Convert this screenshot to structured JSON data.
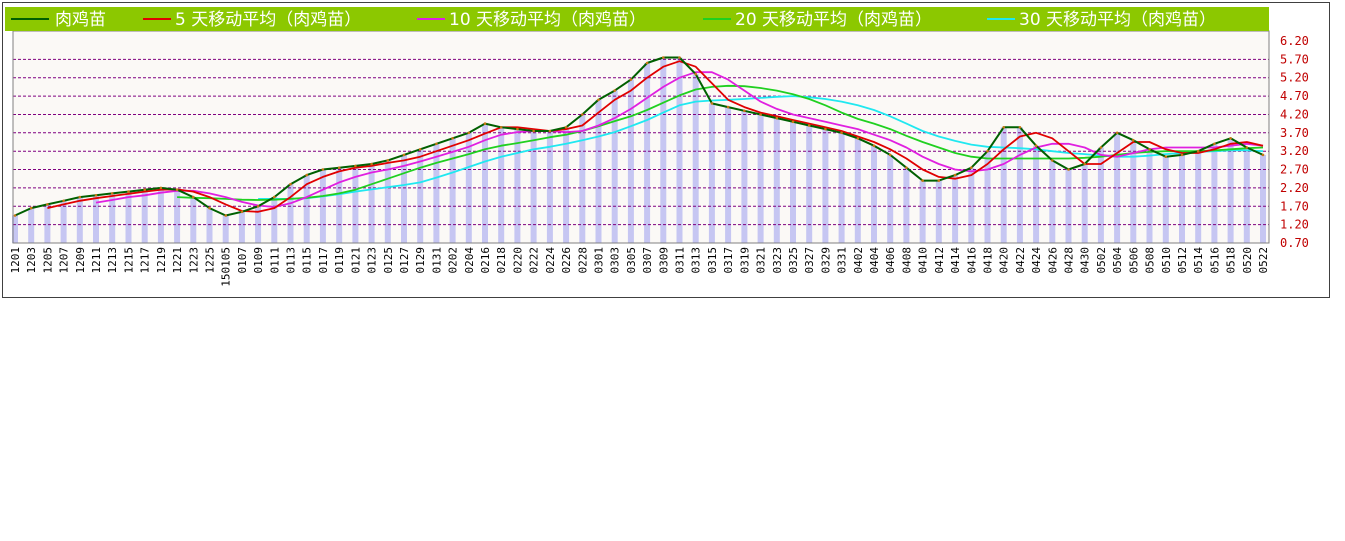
{
  "chart_data": {
    "type": "line",
    "legend_position": "top",
    "grid": true,
    "ylim": [
      0.7,
      6.2
    ],
    "y_ticks": [
      "6.20",
      "5.70",
      "5.20",
      "4.70",
      "4.20",
      "3.70",
      "3.20",
      "2.70",
      "2.20",
      "1.70",
      "1.20",
      "0.70"
    ],
    "x_tick_labels": [
      "1201",
      "1203",
      "1205",
      "1207",
      "1209",
      "1211",
      "1213",
      "1215",
      "1217",
      "1219",
      "1221",
      "1223",
      "1225",
      "150105",
      "0107",
      "0109",
      "0111",
      "0113",
      "0115",
      "0117",
      "0119",
      "0121",
      "0123",
      "0125",
      "0127",
      "0129",
      "0131",
      "0202",
      "0204",
      "0216",
      "0218",
      "0220",
      "0222",
      "0224",
      "0226",
      "0228",
      "0301",
      "0303",
      "0305",
      "0307",
      "0309",
      "0311",
      "0313",
      "0315",
      "0317",
      "0319",
      "0321",
      "0323",
      "0325",
      "0327",
      "0329",
      "0331",
      "0402",
      "0404",
      "0406",
      "0408",
      "0410",
      "0412",
      "0414",
      "0416",
      "0418",
      "0420",
      "0422",
      "0424",
      "0426",
      "0428",
      "0430",
      "0502",
      "0504",
      "0506",
      "0508",
      "0510",
      "0512",
      "0514",
      "0516",
      "0518",
      "0520",
      "0522"
    ],
    "colors": {
      "background_band": "#8cc800",
      "price": "#006000",
      "price_marker": "#c87814",
      "ma5": "#e00000",
      "ma10": "#e020e0",
      "ma20": "#20d020",
      "ma30": "#20e8f0",
      "grid": "#800080",
      "bars": "#b4b4f0"
    },
    "series": [
      {
        "name": "肉鸡苗",
        "key": "price",
        "values": [
          1.45,
          1.65,
          1.75,
          1.85,
          1.95,
          2.0,
          2.05,
          2.1,
          2.15,
          2.2,
          2.15,
          1.95,
          1.65,
          1.45,
          1.55,
          1.7,
          1.95,
          2.3,
          2.55,
          2.7,
          2.75,
          2.8,
          2.85,
          2.95,
          3.1,
          3.25,
          3.4,
          3.55,
          3.7,
          3.95,
          3.85,
          3.8,
          3.75,
          3.75,
          3.85,
          4.2,
          4.6,
          4.85,
          5.15,
          5.6,
          5.75,
          5.75,
          5.3,
          4.5,
          4.4,
          4.3,
          4.2,
          4.1,
          4.0,
          3.9,
          3.8,
          3.7,
          3.55,
          3.35,
          3.1,
          2.75,
          2.4,
          2.4,
          2.55,
          2.75,
          3.2,
          3.85,
          3.85,
          3.35,
          2.95,
          2.7,
          2.85,
          3.3,
          3.7,
          3.5,
          3.25,
          3.05,
          3.1,
          3.2,
          3.4,
          3.55,
          3.3,
          3.1
        ]
      },
      {
        "name": "5 天移动平均（肉鸡苗）",
        "key": "ma5",
        "values": [
          null,
          null,
          1.65,
          1.75,
          1.85,
          1.92,
          1.98,
          2.04,
          2.1,
          2.15,
          2.16,
          2.1,
          1.95,
          1.75,
          1.57,
          1.55,
          1.65,
          1.95,
          2.3,
          2.5,
          2.65,
          2.75,
          2.8,
          2.88,
          2.95,
          3.05,
          3.2,
          3.35,
          3.5,
          3.68,
          3.85,
          3.85,
          3.8,
          3.75,
          3.8,
          3.9,
          4.25,
          4.6,
          4.85,
          5.2,
          5.5,
          5.65,
          5.5,
          5.05,
          4.6,
          4.4,
          4.25,
          4.15,
          4.05,
          3.95,
          3.85,
          3.75,
          3.6,
          3.45,
          3.25,
          3.0,
          2.7,
          2.5,
          2.45,
          2.55,
          2.85,
          3.25,
          3.6,
          3.7,
          3.55,
          3.2,
          2.85,
          2.85,
          3.15,
          3.45,
          3.45,
          3.25,
          3.15,
          3.15,
          3.25,
          3.4,
          3.45,
          3.35
        ]
      },
      {
        "name": "10 天移动平均（肉鸡苗）",
        "key": "ma10",
        "values": [
          null,
          null,
          null,
          null,
          null,
          1.8,
          1.87,
          1.95,
          2.0,
          2.07,
          2.12,
          2.12,
          2.05,
          1.95,
          1.82,
          1.72,
          1.68,
          1.78,
          1.95,
          2.15,
          2.35,
          2.5,
          2.62,
          2.7,
          2.8,
          2.92,
          3.05,
          3.18,
          3.32,
          3.5,
          3.65,
          3.72,
          3.75,
          3.75,
          3.72,
          3.75,
          3.9,
          4.1,
          4.35,
          4.65,
          4.95,
          5.2,
          5.35,
          5.35,
          5.15,
          4.85,
          4.55,
          4.35,
          4.2,
          4.1,
          4.0,
          3.9,
          3.8,
          3.65,
          3.5,
          3.3,
          3.05,
          2.85,
          2.7,
          2.65,
          2.7,
          2.85,
          3.1,
          3.3,
          3.4,
          3.4,
          3.3,
          3.1,
          3.05,
          3.15,
          3.25,
          3.3,
          3.3,
          3.3,
          3.3,
          3.35,
          3.4,
          3.35
        ]
      },
      {
        "name": "20 天移动平均（肉鸡苗）",
        "key": "ma20",
        "values": [
          null,
          null,
          null,
          null,
          null,
          null,
          null,
          null,
          null,
          null,
          1.95,
          1.93,
          1.92,
          1.9,
          1.88,
          1.87,
          1.88,
          1.9,
          1.93,
          1.98,
          2.05,
          2.15,
          2.3,
          2.45,
          2.6,
          2.75,
          2.88,
          3.0,
          3.12,
          3.25,
          3.35,
          3.42,
          3.5,
          3.58,
          3.65,
          3.75,
          3.88,
          4.02,
          4.15,
          4.32,
          4.52,
          4.72,
          4.88,
          4.95,
          4.98,
          4.97,
          4.92,
          4.85,
          4.75,
          4.62,
          4.45,
          4.25,
          4.08,
          3.95,
          3.8,
          3.62,
          3.45,
          3.3,
          3.15,
          3.05,
          3.0,
          3.0,
          3.0,
          3.0,
          3.0,
          3.0,
          3.02,
          3.05,
          3.1,
          3.15,
          3.18,
          3.2,
          3.2,
          3.2,
          3.22,
          3.25,
          3.28,
          3.3
        ]
      },
      {
        "name": "30 天移动平均（肉鸡苗）",
        "key": "ma30",
        "values": [
          null,
          null,
          null,
          null,
          null,
          null,
          null,
          null,
          null,
          null,
          null,
          null,
          null,
          null,
          null,
          1.9,
          1.9,
          1.9,
          1.92,
          1.97,
          2.03,
          2.1,
          2.16,
          2.22,
          2.28,
          2.35,
          2.48,
          2.62,
          2.77,
          2.92,
          3.05,
          3.15,
          3.25,
          3.32,
          3.4,
          3.5,
          3.6,
          3.72,
          3.88,
          4.05,
          4.25,
          4.45,
          4.55,
          4.58,
          4.6,
          4.62,
          4.65,
          4.68,
          4.7,
          4.67,
          4.62,
          4.55,
          4.45,
          4.32,
          4.15,
          3.95,
          3.75,
          3.6,
          3.48,
          3.38,
          3.32,
          3.3,
          3.28,
          3.25,
          3.2,
          3.15,
          3.12,
          3.08,
          3.05,
          3.05,
          3.08,
          3.12,
          3.15,
          3.18,
          3.2,
          3.22,
          3.22,
          3.2
        ]
      }
    ]
  }
}
